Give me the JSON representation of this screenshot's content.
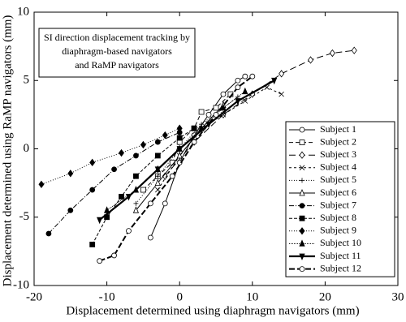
{
  "chart_data": {
    "type": "scatter",
    "title": [
      "SI direction displacement tracking by",
      "diaphragm-based navigators",
      "and RaMP navigators"
    ],
    "xlabel": "Displacement determined using diaphragm navigators (mm)",
    "ylabel": "Displacement determined using RaMP navigators (mm)",
    "xlim": [
      -20,
      30
    ],
    "ylim": [
      -10,
      10
    ],
    "xticks": [
      -20,
      -10,
      0,
      10,
      20,
      30
    ],
    "yticks": [
      -10,
      -5,
      0,
      5,
      10
    ],
    "grid": false,
    "legend": "lower right",
    "series": [
      {
        "name": "Subject 1",
        "color": "#000000",
        "marker": "o",
        "filled": false,
        "dash": "",
        "width": 1,
        "x": [
          -4,
          -2,
          0,
          2,
          4,
          6,
          8,
          9
        ],
        "y": [
          -6.5,
          -4,
          -1,
          1,
          2.5,
          4,
          5,
          5.3
        ]
      },
      {
        "name": "Subject 2",
        "color": "#000000",
        "marker": "s",
        "filled": false,
        "dash": "5 3",
        "width": 1,
        "x": [
          -5,
          -3,
          -1,
          0,
          2,
          3,
          5,
          7
        ],
        "y": [
          -3,
          -2,
          -1,
          0.5,
          1.5,
          2.7,
          3,
          4
        ]
      },
      {
        "name": "Subject 3",
        "color": "#000000",
        "marker": "D",
        "filled": false,
        "dash": "8 4",
        "width": 1,
        "x": [
          -2,
          2,
          6,
          10,
          14,
          18,
          21,
          24
        ],
        "y": [
          -2,
          0.5,
          2.5,
          4,
          5.5,
          6.5,
          7,
          7.2
        ]
      },
      {
        "name": "Subject 4",
        "color": "#000000",
        "marker": "x",
        "filled": false,
        "dash": "3 3",
        "width": 1,
        "x": [
          -3,
          0,
          3,
          6,
          9,
          12,
          14
        ],
        "y": [
          -3,
          -0.5,
          1.5,
          2.5,
          3.5,
          4.5,
          4
        ]
      },
      {
        "name": "Subject 5",
        "color": "#000000",
        "marker": "+",
        "filled": false,
        "dash": "1 2",
        "width": 1,
        "x": [
          -6,
          -3,
          0,
          3,
          6,
          8
        ],
        "y": [
          -4,
          -2,
          0,
          1.8,
          3,
          3.8
        ]
      },
      {
        "name": "Subject 6",
        "color": "#000000",
        "marker": "^",
        "filled": false,
        "dash": "",
        "width": 1,
        "x": [
          -6,
          -3,
          0,
          3,
          6
        ],
        "y": [
          -4.5,
          -2.5,
          -0.5,
          1.5,
          3.2
        ]
      },
      {
        "name": "Subject 7",
        "color": "#000000",
        "marker": "o",
        "filled": true,
        "dash": "6 2 1 2",
        "width": 1,
        "x": [
          -18,
          -15,
          -12,
          -9,
          -6,
          -3,
          0
        ],
        "y": [
          -6.2,
          -4.5,
          -3,
          -1.5,
          -0.5,
          0.5,
          1.2
        ]
      },
      {
        "name": "Subject 8",
        "color": "#000000",
        "marker": "s",
        "filled": true,
        "dash": "4 2",
        "width": 1,
        "x": [
          -12,
          -10,
          -8,
          -6,
          -3,
          0,
          2
        ],
        "y": [
          -7,
          -5,
          -3.5,
          -2,
          -0.5,
          0.8,
          1.5
        ]
      },
      {
        "name": "Subject 9",
        "color": "#000000",
        "marker": "D",
        "filled": true,
        "dash": "1 2",
        "width": 1,
        "x": [
          -19,
          -15,
          -12,
          -8,
          -5,
          -2,
          0
        ],
        "y": [
          -2.6,
          -1.8,
          -1,
          -0.3,
          0.3,
          1,
          1.5
        ]
      },
      {
        "name": "Subject 10",
        "color": "#000000",
        "marker": "^",
        "filled": true,
        "dash": "1 1",
        "width": 1,
        "x": [
          -10,
          -6,
          -3,
          0,
          3,
          6,
          9
        ],
        "y": [
          -4.5,
          -3,
          -1.5,
          0,
          1.5,
          3,
          4.2
        ]
      },
      {
        "name": "Subject 11",
        "color": "#000000",
        "marker": "v",
        "filled": true,
        "dash": "",
        "width": 2.2,
        "x": [
          -11,
          -7,
          -3,
          0,
          4,
          8,
          13
        ],
        "y": [
          -5.2,
          -3.5,
          -1.5,
          0,
          1.8,
          3.5,
          5
        ]
      },
      {
        "name": "Subject 12",
        "color": "#000000",
        "marker": "o",
        "filled": false,
        "dash": "7 3",
        "width": 2,
        "x": [
          -11,
          -9,
          -7,
          -4,
          -1,
          2,
          5,
          8,
          10
        ],
        "y": [
          -8.2,
          -7.8,
          -6,
          -4,
          -2,
          0.5,
          2.5,
          4.5,
          5.3
        ]
      }
    ]
  }
}
